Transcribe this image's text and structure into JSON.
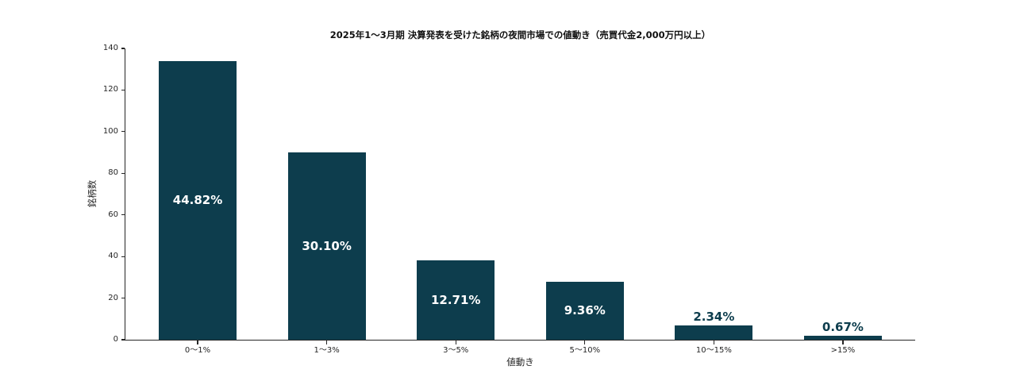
{
  "chart_data": {
    "type": "bar",
    "title": "2025年1〜3月期 決算発表を受けた銘柄の夜間市場での値動き（売買代金2,000万円以上）",
    "xlabel": "値動き",
    "ylabel": "銘柄数",
    "categories": [
      "0〜1%",
      "1〜3%",
      "3〜5%",
      "5〜10%",
      "10〜15%",
      ">15%"
    ],
    "values": [
      134,
      90,
      38,
      28,
      7,
      2
    ],
    "bar_labels": [
      "44.82%",
      "30.10%",
      "12.71%",
      "9.36%",
      "2.34%",
      "0.67%"
    ],
    "yticks": [
      0,
      20,
      40,
      60,
      80,
      100,
      120,
      140
    ],
    "ylim": [
      0,
      140
    ],
    "grid": false,
    "legend": null,
    "colors": {
      "bar": "#0d3d4d",
      "label_inside": "#ffffff",
      "label_outside": "#0d3d4d",
      "axis": "#262626"
    }
  }
}
